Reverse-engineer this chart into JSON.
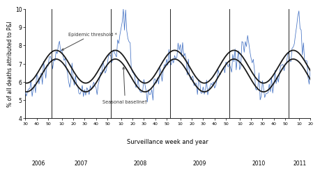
{
  "title": "",
  "ylabel": "% of all deaths attributed to P&I",
  "xlabel": "Surveillance week and year",
  "ylim": [
    4,
    10
  ],
  "yticks": [
    4,
    5,
    6,
    7,
    8,
    9,
    10
  ],
  "background_color": "#ffffff",
  "line_color": "#4472c4",
  "smooth_color": "#1a1a1a",
  "year_labels": [
    "2006",
    "2007",
    "2008",
    "2009",
    "2010",
    "2011"
  ],
  "annotation_epidemic": "Epidemic threshold *",
  "annotation_baseline": "Seasonal baseline†"
}
